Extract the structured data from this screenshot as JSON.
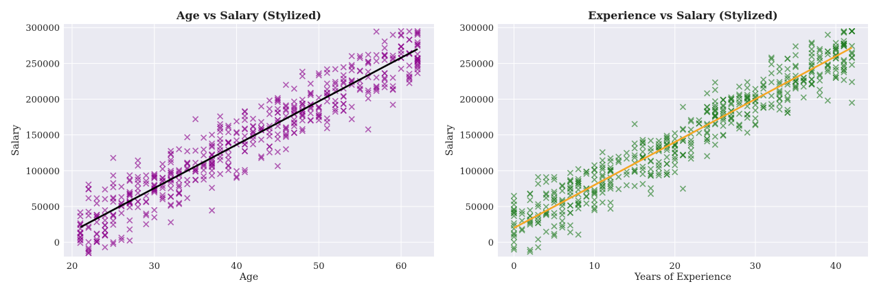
{
  "chart_data": [
    {
      "type": "scatter",
      "title": "Age vs Salary (Stylized)",
      "xlabel": "Age",
      "ylabel": "Salary",
      "xlim": [
        19,
        64
      ],
      "ylim": [
        -20000,
        305000
      ],
      "xticks": [
        20,
        30,
        40,
        50,
        60
      ],
      "yticks": [
        0,
        50000,
        100000,
        150000,
        200000,
        250000,
        300000
      ],
      "grid": true,
      "marker": "x",
      "marker_color": "#8b008b",
      "fit_line_color": "#000000",
      "fit_line": {
        "x": [
          21,
          62
        ],
        "y": [
          21000,
          270000
        ]
      },
      "x_range": [
        21,
        62
      ],
      "approx_trend": {
        "slope": 6100,
        "intercept": -107000,
        "spread_sd": 22000
      },
      "n_points": 500,
      "notable_points": [
        {
          "x": 24,
          "y": -7000
        },
        {
          "x": 23,
          "y": 4000
        },
        {
          "x": 33,
          "y": 55000
        },
        {
          "x": 41,
          "y": 98000
        },
        {
          "x": 62,
          "y": 293000
        },
        {
          "x": 60,
          "y": 290000
        },
        {
          "x": 59,
          "y": 213000
        },
        {
          "x": 61,
          "y": 230000
        }
      ]
    },
    {
      "type": "scatter",
      "title": "Experience vs Salary (Stylized)",
      "xlabel": "Years of Experience",
      "ylabel": "Salary",
      "xlim": [
        -2,
        44
      ],
      "ylim": [
        -20000,
        305000
      ],
      "xticks": [
        0,
        10,
        20,
        30,
        40
      ],
      "yticks": [
        0,
        50000,
        100000,
        150000,
        200000,
        250000,
        300000
      ],
      "grid": true,
      "marker": "x",
      "marker_color": "#1e7b1e",
      "fit_line_color": "#f5a623",
      "fit_line": {
        "x": [
          0,
          42
        ],
        "y": [
          20000,
          272000
        ]
      },
      "x_range": [
        0,
        42
      ],
      "approx_trend": {
        "slope": 6000,
        "intercept": 21000,
        "spread_sd": 22000
      },
      "n_points": 500,
      "notable_points": [
        {
          "x": 3,
          "y": -7000
        },
        {
          "x": 3,
          "y": 4000
        },
        {
          "x": 2,
          "y": 68000
        },
        {
          "x": 20,
          "y": 98000
        },
        {
          "x": 41,
          "y": 293000
        },
        {
          "x": 39,
          "y": 290000
        },
        {
          "x": 38,
          "y": 213000
        },
        {
          "x": 40,
          "y": 230000
        }
      ]
    }
  ]
}
